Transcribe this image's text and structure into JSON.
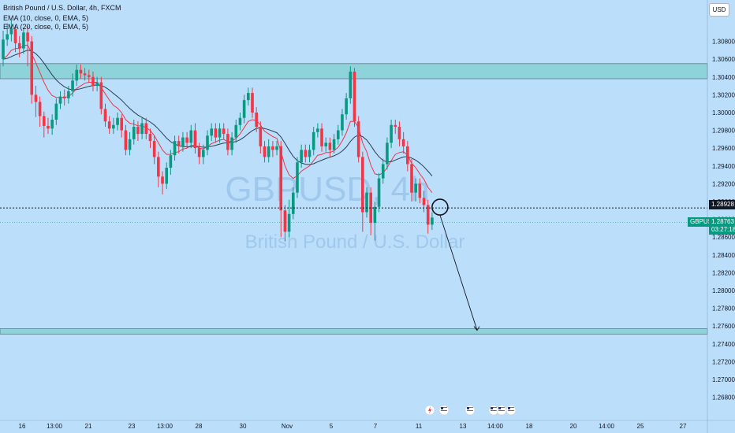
{
  "header": {
    "title": "British Pound / U.S. Dollar, 4h, FXCM",
    "indicators": [
      "EMA (10, close, 0, EMA, 5)",
      "EMA (20, close, 0, EMA, 5)"
    ]
  },
  "watermark": {
    "symbol": "GBPUSD, 4h",
    "name": "British Pound / U.S. Dollar"
  },
  "currency_button": "USD",
  "symbol_tag": "GBPUSD",
  "price_tag": {
    "value": "1.28763",
    "countdown": "03:27:18"
  },
  "marker_price": "1.28928",
  "colors": {
    "background": "#bbdefb",
    "up": "#089981",
    "down": "#f23645",
    "zone": "#8dd3d9",
    "ema_fast": "#f23645",
    "ema_slow": "#2c3e50",
    "axis_text": "#131722"
  },
  "chart_data": {
    "type": "candlestick",
    "y_ticks": [
      "1.30800",
      "1.30600",
      "1.30400",
      "1.30200",
      "1.30000",
      "1.29800",
      "1.29600",
      "1.29400",
      "1.29200",
      "1.29000",
      "1.28800",
      "1.28600",
      "1.28400",
      "1.28200",
      "1.28000",
      "1.27800",
      "1.27600",
      "1.27400",
      "1.27200",
      "1.27000",
      "1.26800"
    ],
    "x_ticks": [
      "16",
      "13:00",
      "21",
      "23",
      "13:00",
      "28",
      "30",
      "Nov",
      "5",
      "7",
      "11",
      "13",
      "14:00",
      "18",
      "20",
      "14:00",
      "25",
      "27"
    ],
    "ylim": [
      1.2676,
      1.3104
    ],
    "zones": [
      {
        "from": 1.3038,
        "to": 1.3055
      },
      {
        "from": 1.2751,
        "to": 1.2757
      }
    ],
    "candles": [
      [
        1.306,
        1.3082,
        1.3092,
        1.3052
      ],
      [
        1.3082,
        1.3088,
        1.31,
        1.3075
      ],
      [
        1.3088,
        1.3094,
        1.3104,
        1.308
      ],
      [
        1.3094,
        1.3078,
        1.3098,
        1.3068
      ],
      [
        1.3078,
        1.3072,
        1.3086,
        1.3062
      ],
      [
        1.3072,
        1.309,
        1.3095,
        1.3066
      ],
      [
        1.309,
        1.308,
        1.3097,
        1.3052
      ],
      [
        1.308,
        1.302,
        1.3086,
        1.301
      ],
      [
        1.302,
        1.3012,
        1.303,
        1.2995
      ],
      [
        1.3012,
        1.2996,
        1.3018,
        1.2984
      ],
      [
        1.2996,
        1.2985,
        1.3001,
        1.2972
      ],
      [
        1.2985,
        1.2982,
        1.2994,
        1.2976
      ],
      [
        1.2982,
        1.2992,
        1.2998,
        1.2975
      ],
      [
        1.2992,
        1.301,
        1.3016,
        1.2986
      ],
      [
        1.301,
        1.3018,
        1.3024,
        1.3004
      ],
      [
        1.3018,
        1.3016,
        1.3026,
        1.3008
      ],
      [
        1.3016,
        1.3024,
        1.303,
        1.301
      ],
      [
        1.3024,
        1.3036,
        1.3044,
        1.3018
      ],
      [
        1.3036,
        1.3048,
        1.3054,
        1.303
      ],
      [
        1.3048,
        1.3044,
        1.3054,
        1.3038
      ],
      [
        1.3044,
        1.3042,
        1.305,
        1.3036
      ],
      [
        1.3042,
        1.304,
        1.3048,
        1.3034
      ],
      [
        1.304,
        1.303,
        1.3046,
        1.3024
      ],
      [
        1.303,
        1.3034,
        1.304,
        1.3024
      ],
      [
        1.3034,
        1.3004,
        1.304,
        1.2998
      ],
      [
        1.3004,
        1.299,
        1.301,
        1.2984
      ],
      [
        1.299,
        1.2982,
        1.2996,
        1.2976
      ],
      [
        1.2982,
        1.2986,
        1.2994,
        1.2976
      ],
      [
        1.2986,
        1.2994,
        1.3,
        1.298
      ],
      [
        1.2994,
        1.298,
        1.2998,
        1.2972
      ],
      [
        1.298,
        1.2958,
        1.2986,
        1.2952
      ],
      [
        1.2958,
        1.297,
        1.2978,
        1.2952
      ],
      [
        1.297,
        1.2984,
        1.2992,
        1.2964
      ],
      [
        1.2984,
        1.2976,
        1.299,
        1.2968
      ],
      [
        1.2976,
        1.2988,
        1.2994,
        1.297
      ],
      [
        1.2988,
        1.2976,
        1.2994,
        1.297
      ],
      [
        1.2976,
        1.2968,
        1.2982,
        1.296
      ],
      [
        1.2968,
        1.295,
        1.2974,
        1.2942
      ],
      [
        1.295,
        1.2928,
        1.2956,
        1.2916
      ],
      [
        1.2928,
        1.292,
        1.2934,
        1.2908
      ],
      [
        1.292,
        1.2938,
        1.2944,
        1.2914
      ],
      [
        1.2938,
        1.2952,
        1.2958,
        1.293
      ],
      [
        1.2952,
        1.2968,
        1.2974,
        1.2946
      ],
      [
        1.2968,
        1.2962,
        1.2974,
        1.2954
      ],
      [
        1.2962,
        1.2972,
        1.2978,
        1.2956
      ],
      [
        1.2972,
        1.2966,
        1.2978,
        1.296
      ],
      [
        1.2966,
        1.298,
        1.2986,
        1.296
      ],
      [
        1.298,
        1.296,
        1.2988,
        1.2954
      ],
      [
        1.296,
        1.295,
        1.2966,
        1.2942
      ],
      [
        1.295,
        1.2958,
        1.2964,
        1.2942
      ],
      [
        1.2958,
        1.2974,
        1.298,
        1.2952
      ],
      [
        1.2974,
        1.2982,
        1.2988,
        1.2968
      ],
      [
        1.2982,
        1.2972,
        1.2988,
        1.2966
      ],
      [
        1.2972,
        1.2982,
        1.2988,
        1.2966
      ],
      [
        1.2982,
        1.2976,
        1.2988,
        1.297
      ],
      [
        1.2976,
        1.2958,
        1.2982,
        1.2952
      ],
      [
        1.2958,
        1.2972,
        1.2978,
        1.2952
      ],
      [
        1.2972,
        1.2986,
        1.2992,
        1.2966
      ],
      [
        1.2986,
        1.2994,
        1.3,
        1.298
      ],
      [
        1.2994,
        1.3014,
        1.302,
        1.2988
      ],
      [
        1.3014,
        1.3022,
        1.3028,
        1.3008
      ],
      [
        1.3022,
        1.3,
        1.3028,
        1.2994
      ],
      [
        1.3,
        1.2984,
        1.3006,
        1.2978
      ],
      [
        1.2984,
        1.2962,
        1.299,
        1.2954
      ],
      [
        1.2962,
        1.295,
        1.2968,
        1.2944
      ],
      [
        1.295,
        1.2962,
        1.297,
        1.2944
      ],
      [
        1.2962,
        1.2958,
        1.2968,
        1.295
      ],
      [
        1.2958,
        1.2962,
        1.2968,
        1.2952
      ],
      [
        1.2962,
        1.289,
        1.2968,
        1.286
      ],
      [
        1.289,
        1.2866,
        1.2896,
        1.2855
      ],
      [
        1.2866,
        1.2886,
        1.2902,
        1.286
      ],
      [
        1.2886,
        1.291,
        1.2916,
        1.288
      ],
      [
        1.291,
        1.2944,
        1.295,
        1.2904
      ],
      [
        1.2944,
        1.2958,
        1.2964,
        1.2938
      ],
      [
        1.2958,
        1.295,
        1.2964,
        1.2944
      ],
      [
        1.295,
        1.2958,
        1.2964,
        1.2944
      ],
      [
        1.2958,
        1.2978,
        1.2984,
        1.2952
      ],
      [
        1.2978,
        1.2982,
        1.2988,
        1.2972
      ],
      [
        1.2982,
        1.2962,
        1.2988,
        1.2956
      ],
      [
        1.2962,
        1.2966,
        1.2972,
        1.2956
      ],
      [
        1.2966,
        1.2958,
        1.2972,
        1.295
      ],
      [
        1.2958,
        1.297,
        1.2976,
        1.2954
      ],
      [
        1.297,
        1.298,
        1.2986,
        1.2964
      ],
      [
        1.298,
        1.2998,
        1.3004,
        1.2974
      ],
      [
        1.2998,
        1.3016,
        1.3022,
        1.2992
      ],
      [
        1.3016,
        1.3046,
        1.3052,
        1.301
      ],
      [
        1.3046,
        1.299,
        1.305,
        1.2984
      ],
      [
        1.299,
        1.295,
        1.2996,
        1.2944
      ],
      [
        1.295,
        1.2888,
        1.2956,
        1.2866
      ],
      [
        1.2888,
        1.291,
        1.2916,
        1.2882
      ],
      [
        1.291,
        1.2876,
        1.2916,
        1.2862
      ],
      [
        1.2876,
        1.2894,
        1.29,
        1.2856
      ],
      [
        1.2894,
        1.2926,
        1.2932,
        1.2888
      ],
      [
        1.2926,
        1.2942,
        1.2948,
        1.292
      ],
      [
        1.2942,
        1.2966,
        1.2972,
        1.2936
      ],
      [
        1.2966,
        1.2986,
        1.2992,
        1.296
      ],
      [
        1.2986,
        1.2984,
        1.2992,
        1.2976
      ],
      [
        1.2984,
        1.297,
        1.299,
        1.2962
      ],
      [
        1.297,
        1.2962,
        1.2978,
        1.2954
      ],
      [
        1.2962,
        1.2942,
        1.2968,
        1.2934
      ],
      [
        1.2942,
        1.291,
        1.2948,
        1.29
      ],
      [
        1.291,
        1.292,
        1.2926,
        1.29
      ],
      [
        1.292,
        1.2904,
        1.2926,
        1.2898
      ],
      [
        1.2904,
        1.2896,
        1.2912,
        1.2888
      ],
      [
        1.2896,
        1.2874,
        1.2902,
        1.2864
      ],
      [
        1.2874,
        1.2882,
        1.2888,
        1.2868
      ]
    ],
    "ema_fast": [
      1.306,
      1.3064,
      1.307,
      1.3072,
      1.3072,
      1.3075,
      1.3076,
      1.3066,
      1.3056,
      1.3045,
      1.3034,
      1.3025,
      1.3019,
      1.3017,
      1.3017,
      1.3017,
      1.3018,
      1.3022,
      1.3027,
      1.303,
      1.3033,
      1.3034,
      1.3034,
      1.3034,
      1.3028,
      1.3021,
      1.3014,
      1.3008,
      1.3005,
      1.3,
      1.2992,
      1.2988,
      1.2987,
      1.2985,
      1.2985,
      1.2983,
      1.298,
      1.2974,
      1.2966,
      1.2958,
      1.2953,
      1.2953,
      1.2955,
      1.2956,
      1.2959,
      1.296,
      1.2963,
      1.2963,
      1.296,
      1.2959,
      1.2962,
      1.2965,
      1.2967,
      1.2969,
      1.297,
      1.2967,
      1.2968,
      1.2971,
      1.2976,
      1.2983,
      1.299,
      1.2992,
      1.2991,
      1.2986,
      1.2979,
      1.2976,
      1.2973,
      1.2971,
      1.2956,
      1.294,
      1.293,
      1.2926,
      1.2929,
      1.2934,
      1.2937,
      1.294,
      1.2946,
      1.2952,
      1.2953,
      1.2955,
      1.2955,
      1.2957,
      1.2961,
      1.2968,
      1.2977,
      1.299,
      1.299,
      1.2983,
      1.2966,
      1.2956,
      1.2941,
      1.2931,
      1.293,
      1.2932,
      1.2938,
      1.2946,
      1.2953,
      1.2955,
      1.2956,
      1.2952,
      1.2943,
      1.2938,
      1.2931,
      1.2925,
      1.2916,
      1.291
    ]
  },
  "bottom_icons": [
    "lightning-icon",
    "flag-icon",
    "flag-icon",
    "flag-icon",
    "flag-icon",
    "flag-icon"
  ]
}
